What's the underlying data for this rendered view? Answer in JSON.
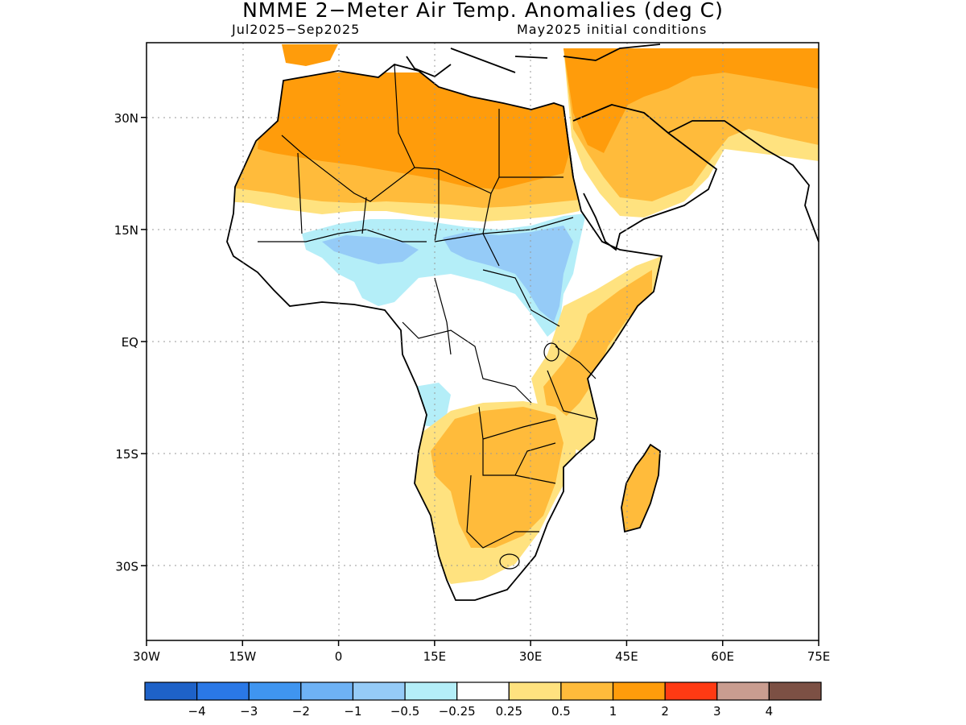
{
  "title": "NMME 2−Meter Air Temp. Anomalies (deg C)",
  "subtitle_left": "Jul2025−Sep2025",
  "subtitle_right": "May2025 initial conditions",
  "map": {
    "lon_range": [
      -30,
      75
    ],
    "lat_range": [
      -40,
      40
    ],
    "lat_ticks": [
      {
        "value": 30,
        "label": "30N"
      },
      {
        "value": 15,
        "label": "15N"
      },
      {
        "value": 0,
        "label": "EQ"
      },
      {
        "value": -15,
        "label": "15S"
      },
      {
        "value": -30,
        "label": "30S"
      }
    ],
    "lon_ticks": [
      {
        "value": -30,
        "label": "30W"
      },
      {
        "value": -15,
        "label": "15W"
      },
      {
        "value": 0,
        "label": "0"
      },
      {
        "value": 15,
        "label": "15E"
      },
      {
        "value": 30,
        "label": "30E"
      },
      {
        "value": 45,
        "label": "45E"
      },
      {
        "value": 60,
        "label": "60E"
      },
      {
        "value": 75,
        "label": "75E"
      }
    ],
    "grid": "dotted"
  },
  "colorbar": {
    "colors": [
      "#1e62c8",
      "#2a78e6",
      "#3f95f0",
      "#6eb2f5",
      "#95cbf7",
      "#b4eef8",
      "#ffffff",
      "#ffe27f",
      "#ffbb3b",
      "#ff9c0b",
      "#ff3a13",
      "#c99d90",
      "#7c5044"
    ],
    "labels": [
      "−4",
      "−3",
      "−2",
      "−1",
      "−0.5",
      "−0.25",
      "0.25",
      "0.5",
      "1",
      "2",
      "3",
      "4"
    ]
  },
  "anomaly_regions": [
    {
      "name": "sahara-north-africa",
      "level": "1 to 2",
      "color": "#ff9c0b"
    },
    {
      "name": "sahara-southern-band",
      "level": "0.5 to 1",
      "color": "#ffbb3b"
    },
    {
      "name": "arabia-middle-east",
      "level": "0.5 to 2",
      "color": "#ff9c0b"
    },
    {
      "name": "sahel-band",
      "level": "-0.5 to -0.25",
      "color": "#b4eef8"
    },
    {
      "name": "southern-sudan-uganda",
      "level": "-1 to -0.5",
      "color": "#95cbf7"
    },
    {
      "name": "angola-coast",
      "level": "-0.5 to -0.25",
      "color": "#b4eef8"
    },
    {
      "name": "east-africa-kenya-somalia",
      "level": "0.5 to 1",
      "color": "#ffbb3b"
    },
    {
      "name": "southern-africa",
      "level": "0.5 to 1",
      "color": "#ffbb3b"
    },
    {
      "name": "madagascar",
      "level": "0.5 to 1",
      "color": "#ffbb3b"
    }
  ]
}
